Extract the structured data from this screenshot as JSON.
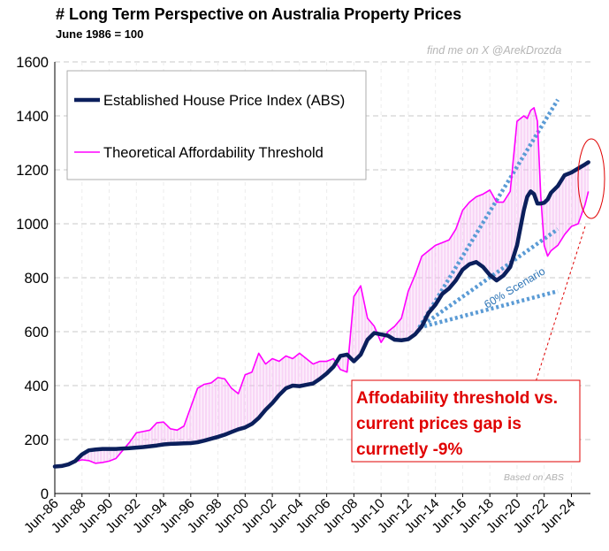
{
  "header": {
    "title": "# Long Term Perspective on Australia Property Prices",
    "subtitle": "June 1986 = 100",
    "watermark": "find me on X @ArekDrozda"
  },
  "colors": {
    "index_line": "#0b1f5c",
    "threshold_line": "#ff00ff",
    "gap_fill": "#f3b8f0",
    "scenario_line": "#5b9bd5",
    "callout_text": "#e00000",
    "callout_border": "#e00000",
    "grid": "#c8c8c8"
  },
  "chart_data": {
    "type": "line",
    "title": "# Long Term Perspective on Australia Property Prices",
    "subtitle": "June 1986 = 100",
    "xlabel": "",
    "ylabel": "",
    "ylim": [
      0,
      1600
    ],
    "xlim": [
      1986.5,
      2025.9
    ],
    "yticks": [
      0,
      200,
      400,
      600,
      800,
      1000,
      1200,
      1400,
      1600
    ],
    "xtick_labels": [
      "Jun-86",
      "Jun-88",
      "Jun-90",
      "Jun-92",
      "Jun-94",
      "Jun-96",
      "Jun-98",
      "Jun-00",
      "Jun-02",
      "Jun-04",
      "Jun-06",
      "Jun-08",
      "Jun-10",
      "Jun-12",
      "Jun-14",
      "Jun-16",
      "Jun-18",
      "Jun-20",
      "Jun-22",
      "Jun-24"
    ],
    "grid": "horizontal dashed",
    "legend": {
      "position": "top-left",
      "entries": [
        "Established House Price Index (ABS)",
        "Theoretical Affordability Threshold"
      ]
    },
    "series": [
      {
        "name": "Established House Price Index (ABS)",
        "style": "thick navy line",
        "x": [
          1986.5,
          1987,
          1987.5,
          1988,
          1988.5,
          1989,
          1989.5,
          1990,
          1990.5,
          1991,
          1991.5,
          1992,
          1992.5,
          1993,
          1993.5,
          1994,
          1994.5,
          1995,
          1995.5,
          1996,
          1996.5,
          1997,
          1997.5,
          1998,
          1998.5,
          1999,
          1999.5,
          2000,
          2000.5,
          2001,
          2001.5,
          2002,
          2002.5,
          2003,
          2003.5,
          2004,
          2004.5,
          2005,
          2005.5,
          2006,
          2006.5,
          2007,
          2007.5,
          2008,
          2008.5,
          2009,
          2009.5,
          2010,
          2010.5,
          2011,
          2011.5,
          2012,
          2012.5,
          2013,
          2013.5,
          2014,
          2014.5,
          2015,
          2015.5,
          2016,
          2016.5,
          2017,
          2017.5,
          2018,
          2018.5,
          2019,
          2019.5,
          2020,
          2020.5,
          2021,
          2021.25,
          2021.5,
          2021.75,
          2022,
          2022.25,
          2022.5,
          2022.75,
          2023,
          2023.5,
          2024,
          2024.5,
          2025,
          2025.5,
          2025.75
        ],
        "values": [
          100,
          102,
          108,
          120,
          145,
          160,
          163,
          165,
          165,
          165,
          167,
          168,
          170,
          172,
          175,
          178,
          182,
          184,
          185,
          186,
          187,
          190,
          196,
          203,
          210,
          218,
          228,
          238,
          245,
          258,
          280,
          310,
          335,
          365,
          390,
          400,
          398,
          403,
          408,
          425,
          445,
          470,
          510,
          515,
          490,
          515,
          570,
          595,
          590,
          585,
          570,
          568,
          572,
          590,
          620,
          670,
          700,
          740,
          760,
          790,
          830,
          850,
          858,
          840,
          810,
          790,
          808,
          840,
          920,
          1050,
          1100,
          1120,
          1110,
          1075,
          1075,
          1078,
          1090,
          1115,
          1140,
          1180,
          1190,
          1205,
          1220,
          1228
        ]
      },
      {
        "name": "Theoretical Affordability Threshold",
        "style": "thin magenta line",
        "x": [
          1986.5,
          1987,
          1987.5,
          1988,
          1988.5,
          1989,
          1989.5,
          1990,
          1990.5,
          1991,
          1991.5,
          1992,
          1992.5,
          1993,
          1993.5,
          1994,
          1994.5,
          1995,
          1995.5,
          1996,
          1996.5,
          1997,
          1997.5,
          1998,
          1998.5,
          1999,
          1999.5,
          2000,
          2000.5,
          2001,
          2001.5,
          2002,
          2002.5,
          2003,
          2003.5,
          2004,
          2004.5,
          2005,
          2005.5,
          2006,
          2006.5,
          2007,
          2007.5,
          2008,
          2008.5,
          2009,
          2009.5,
          2010,
          2010.5,
          2011,
          2011.5,
          2012,
          2012.5,
          2013,
          2013.5,
          2014,
          2014.5,
          2015,
          2015.5,
          2016,
          2016.5,
          2017,
          2017.5,
          2018,
          2018.5,
          2019,
          2019.5,
          2020,
          2020.5,
          2021,
          2021.25,
          2021.5,
          2021.75,
          2022,
          2022.25,
          2022.5,
          2022.75,
          2023,
          2023.5,
          2024,
          2024.5,
          2025,
          2025.5,
          2025.75
        ],
        "values": [
          100,
          105,
          108,
          118,
          125,
          122,
          112,
          115,
          120,
          130,
          160,
          190,
          225,
          230,
          235,
          262,
          265,
          240,
          235,
          250,
          320,
          390,
          405,
          410,
          430,
          425,
          390,
          370,
          440,
          450,
          520,
          480,
          500,
          490,
          510,
          500,
          520,
          500,
          480,
          490,
          490,
          500,
          460,
          450,
          730,
          770,
          650,
          620,
          560,
          600,
          620,
          650,
          750,
          810,
          880,
          900,
          920,
          930,
          940,
          980,
          1050,
          1080,
          1100,
          1110,
          1125,
          1080,
          1080,
          1120,
          1380,
          1400,
          1390,
          1420,
          1430,
          1380,
          1100,
          920,
          880,
          900,
          920,
          960,
          990,
          1000,
          1070,
          1120
        ]
      },
      {
        "name": "Scenario trend (upper)",
        "style": "dotted light-blue",
        "x": [
          2013.3,
          2023.5
        ],
        "values": [
          615,
          1460
        ]
      },
      {
        "name": "Scenario trend (middle)",
        "style": "dotted light-blue",
        "x": [
          2013.3,
          2023.5
        ],
        "values": [
          615,
          980
        ]
      },
      {
        "name": "Scenario trend (lower)",
        "style": "dotted light-blue",
        "x": [
          2013.3,
          2023.5
        ],
        "values": [
          615,
          750
        ]
      }
    ],
    "annotations": {
      "scenario_label": "60% Scenario",
      "callout": [
        "Affodability threshold vs.",
        "current prices gap is",
        "currnetly -9%"
      ],
      "source_note": "Based on ABS"
    }
  }
}
